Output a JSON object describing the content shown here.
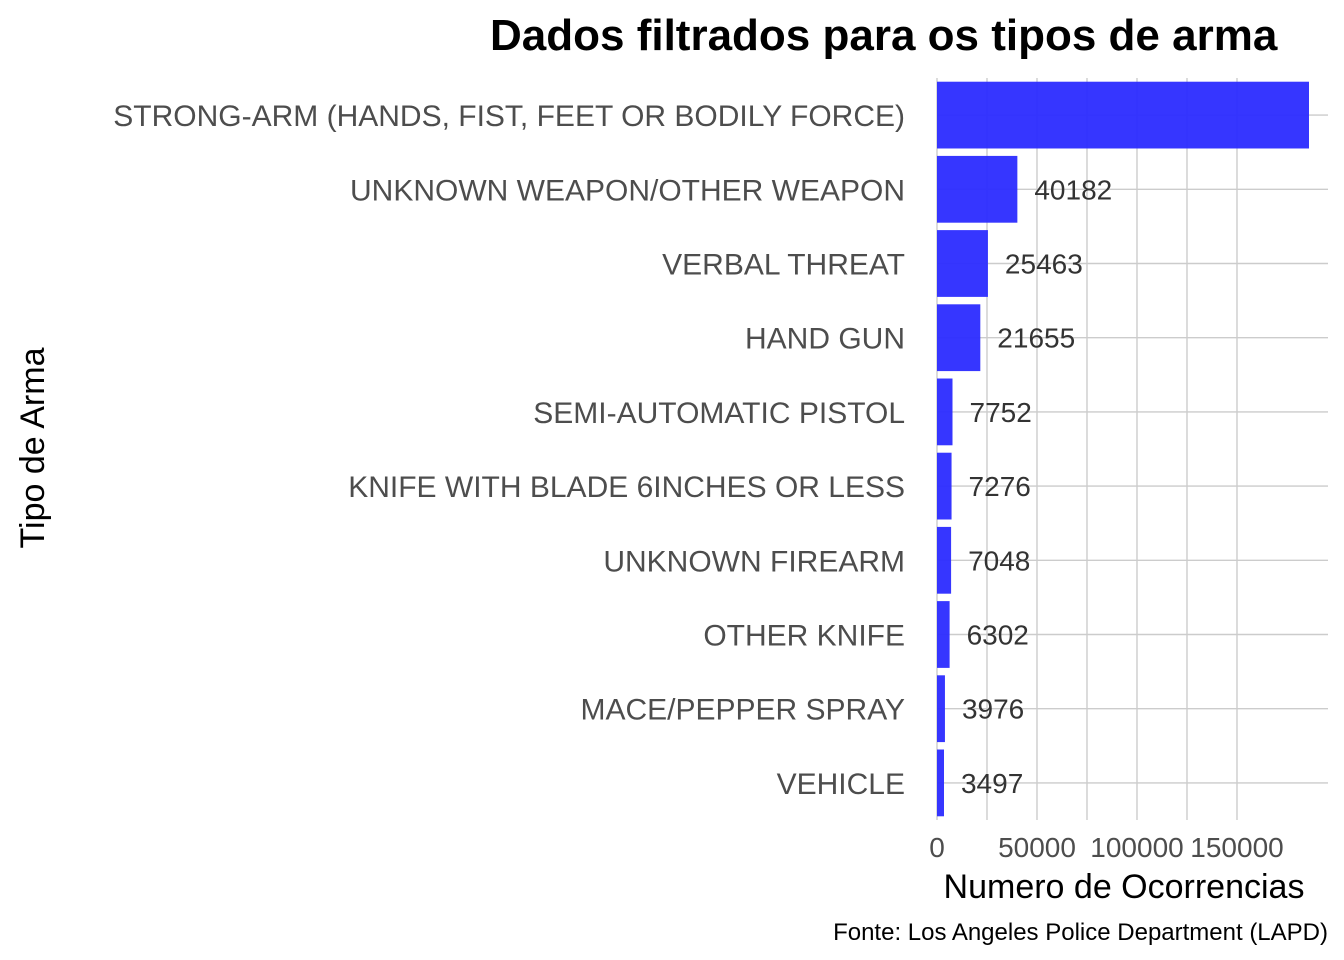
{
  "chart_data": {
    "type": "bar",
    "orientation": "horizontal",
    "title": "Dados filtrados para os tipos de arma",
    "xlabel": "Numero de Ocorrencias",
    "ylabel": "Tipo de Arma",
    "caption": "Fonte: Los Angeles Police Department (LAPD)",
    "categories": [
      "STRONG-ARM (HANDS, FIST, FEET OR BODILY FORCE)",
      "UNKNOWN WEAPON/OTHER WEAPON",
      "VERBAL THREAT",
      "HAND GUN",
      "SEMI-AUTOMATIC PISTOL",
      "KNIFE WITH BLADE 6INCHES OR LESS",
      "UNKNOWN FIREARM",
      "OTHER KNIFE",
      "MACE/PEPPER SPRAY",
      "VEHICLE"
    ],
    "values": [
      186000,
      40182,
      25463,
      21655,
      7752,
      7276,
      7048,
      6302,
      3976,
      3497
    ],
    "value_labels": [
      "",
      "40182",
      "25463",
      "21655",
      "7752",
      "7276",
      "7048",
      "6302",
      "3976",
      "3497"
    ],
    "x_ticks": [
      0,
      50000,
      100000,
      150000
    ],
    "x_tick_labels": [
      "0",
      "50000",
      "100000",
      "150000"
    ],
    "xlim": [
      0,
      195000
    ],
    "grid": true,
    "bar_color": "#2b2bff"
  }
}
